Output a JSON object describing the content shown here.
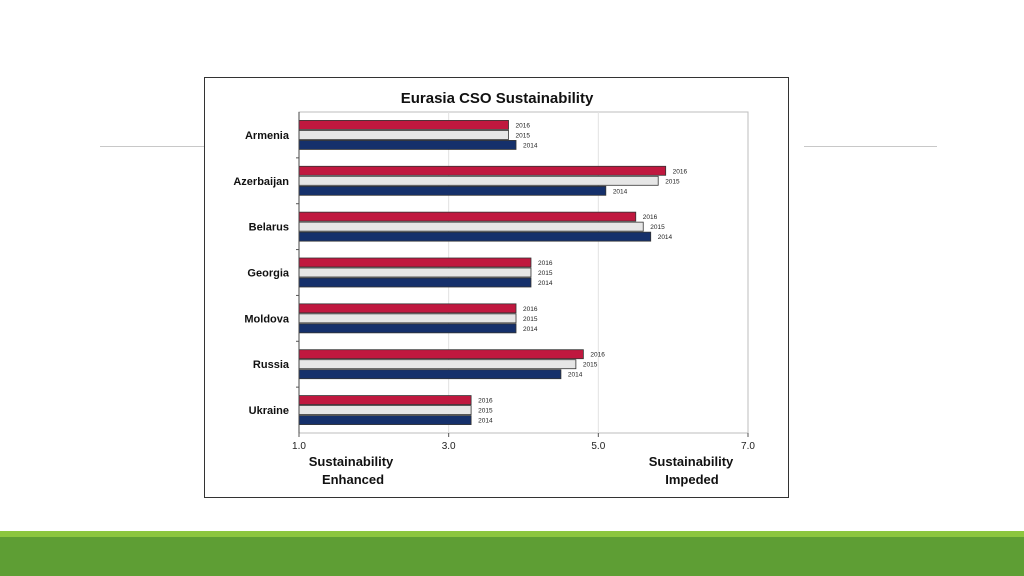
{
  "chart_data": {
    "type": "bar",
    "orientation": "horizontal",
    "title": "Eurasia CSO Sustainability",
    "categories": [
      "Armenia",
      "Azerbaijan",
      "Belarus",
      "Georgia",
      "Moldova",
      "Russia",
      "Ukraine"
    ],
    "series": [
      {
        "name": "2016",
        "color": "#c0183f",
        "values": [
          3.8,
          5.9,
          5.5,
          4.1,
          3.9,
          4.8,
          3.3
        ]
      },
      {
        "name": "2015",
        "color": "#e6e6e6",
        "values": [
          3.8,
          5.8,
          5.6,
          4.1,
          3.9,
          4.7,
          3.3
        ]
      },
      {
        "name": "2014",
        "color": "#15306b",
        "values": [
          3.9,
          5.1,
          5.7,
          4.1,
          3.9,
          4.5,
          3.3
        ]
      }
    ],
    "xlim": [
      1.0,
      7.0
    ],
    "xticks": [
      "1.0",
      "3.0",
      "5.0",
      "7.0"
    ],
    "x_left_label": [
      "Sustainability",
      "Enhanced"
    ],
    "x_right_label": [
      "Sustainability",
      "Impeded"
    ],
    "grid": true
  }
}
